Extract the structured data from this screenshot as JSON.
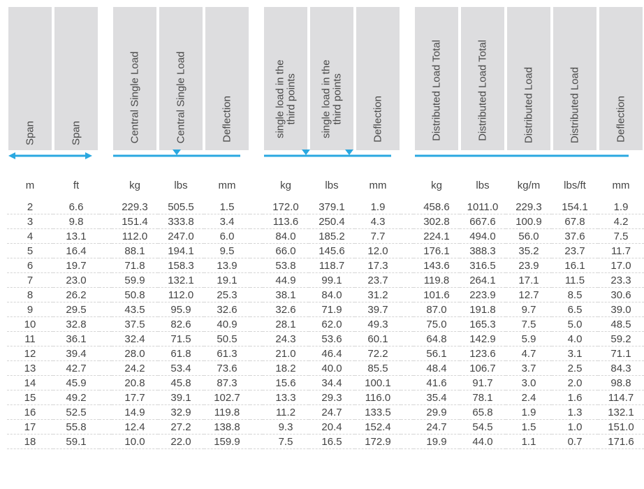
{
  "colors": {
    "header_bg": "#dddddf",
    "line_blue": "#2aa8e0",
    "text": "#4a4a4a",
    "row_sep": "#d5d5d5",
    "background": "#ffffff"
  },
  "typography": {
    "font_family": "Arial, Helvetica, sans-serif",
    "header_fontsize": 15,
    "unit_fontsize": 15,
    "data_fontsize": 15
  },
  "groups": [
    {
      "cols": 2,
      "icon": "arrow-both"
    },
    {
      "cols": 3,
      "icon": "line-one-marker"
    },
    {
      "cols": 3,
      "icon": "line-two-markers"
    },
    {
      "cols": 5,
      "icon": "line-plain"
    }
  ],
  "headers": [
    "Span",
    "Span",
    "Central Single Load",
    "Central Single Load",
    "Deflection",
    "single load in the\nthird points",
    "single load in the\nthird points",
    "Deflection",
    "Distributed Load Total",
    "Distributed Load Total",
    "Distributed Load",
    "Distributed Load",
    "Deflection"
  ],
  "units": [
    "m",
    "ft",
    "kg",
    "lbs",
    "mm",
    "kg",
    "lbs",
    "mm",
    "kg",
    "lbs",
    "kg/m",
    "lbs/ft",
    "mm"
  ],
  "rows": [
    [
      "2",
      "6.6",
      "229.3",
      "505.5",
      "1.5",
      "172.0",
      "379.1",
      "1.9",
      "458.6",
      "1011.0",
      "229.3",
      "154.1",
      "1.9"
    ],
    [
      "3",
      "9.8",
      "151.4",
      "333.8",
      "3.4",
      "113.6",
      "250.4",
      "4.3",
      "302.8",
      "667.6",
      "100.9",
      "67.8",
      "4.2"
    ],
    [
      "4",
      "13.1",
      "112.0",
      "247.0",
      "6.0",
      "84.0",
      "185.2",
      "7.7",
      "224.1",
      "494.0",
      "56.0",
      "37.6",
      "7.5"
    ],
    [
      "5",
      "16.4",
      "88.1",
      "194.1",
      "9.5",
      "66.0",
      "145.6",
      "12.0",
      "176.1",
      "388.3",
      "35.2",
      "23.7",
      "11.7"
    ],
    [
      "6",
      "19.7",
      "71.8",
      "158.3",
      "13.9",
      "53.8",
      "118.7",
      "17.3",
      "143.6",
      "316.5",
      "23.9",
      "16.1",
      "17.0"
    ],
    [
      "7",
      "23.0",
      "59.9",
      "132.1",
      "19.1",
      "44.9",
      "99.1",
      "23.7",
      "119.8",
      "264.1",
      "17.1",
      "11.5",
      "23.3"
    ],
    [
      "8",
      "26.2",
      "50.8",
      "112.0",
      "25.3",
      "38.1",
      "84.0",
      "31.2",
      "101.6",
      "223.9",
      "12.7",
      "8.5",
      "30.6"
    ],
    [
      "9",
      "29.5",
      "43.5",
      "95.9",
      "32.6",
      "32.6",
      "71.9",
      "39.7",
      "87.0",
      "191.8",
      "9.7",
      "6.5",
      "39.0"
    ],
    [
      "10",
      "32.8",
      "37.5",
      "82.6",
      "40.9",
      "28.1",
      "62.0",
      "49.3",
      "75.0",
      "165.3",
      "7.5",
      "5.0",
      "48.5"
    ],
    [
      "11",
      "36.1",
      "32.4",
      "71.5",
      "50.5",
      "24.3",
      "53.6",
      "60.1",
      "64.8",
      "142.9",
      "5.9",
      "4.0",
      "59.2"
    ],
    [
      "12",
      "39.4",
      "28.0",
      "61.8",
      "61.3",
      "21.0",
      "46.4",
      "72.2",
      "56.1",
      "123.6",
      "4.7",
      "3.1",
      "71.1"
    ],
    [
      "13",
      "42.7",
      "24.2",
      "53.4",
      "73.6",
      "18.2",
      "40.0",
      "85.5",
      "48.4",
      "106.7",
      "3.7",
      "2.5",
      "84.3"
    ],
    [
      "14",
      "45.9",
      "20.8",
      "45.8",
      "87.3",
      "15.6",
      "34.4",
      "100.1",
      "41.6",
      "91.7",
      "3.0",
      "2.0",
      "98.8"
    ],
    [
      "15",
      "49.2",
      "17.7",
      "39.1",
      "102.7",
      "13.3",
      "29.3",
      "116.0",
      "35.4",
      "78.1",
      "2.4",
      "1.6",
      "114.7"
    ],
    [
      "16",
      "52.5",
      "14.9",
      "32.9",
      "119.8",
      "11.2",
      "24.7",
      "133.5",
      "29.9",
      "65.8",
      "1.9",
      "1.3",
      "132.1"
    ],
    [
      "17",
      "55.8",
      "12.4",
      "27.2",
      "138.8",
      "9.3",
      "20.4",
      "152.4",
      "24.7",
      "54.5",
      "1.5",
      "1.0",
      "151.0"
    ],
    [
      "18",
      "59.1",
      "10.0",
      "22.0",
      "159.9",
      "7.5",
      "16.5",
      "172.9",
      "19.9",
      "44.0",
      "1.1",
      "0.7",
      "171.6"
    ]
  ]
}
